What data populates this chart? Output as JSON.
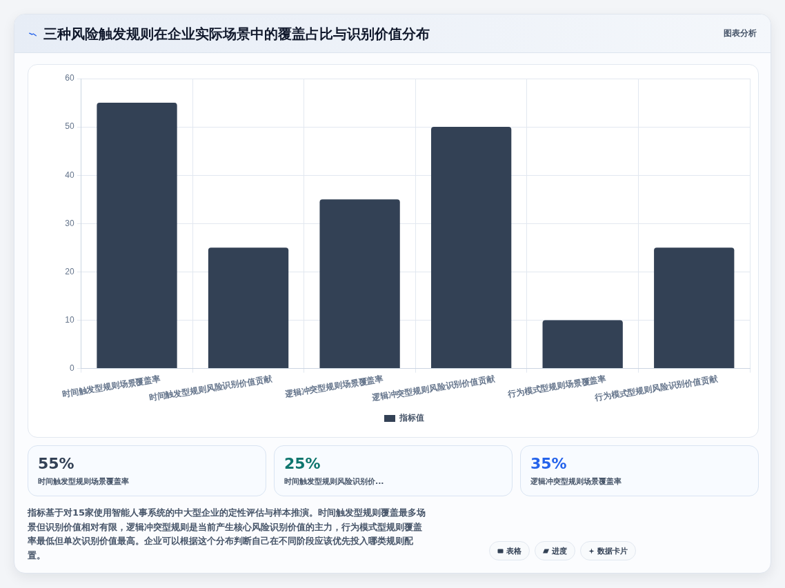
{
  "chart_data": [
    {
      "type": "bar",
      "title": "三种风险触发规则在企业实际场景中的覆盖占比与识别价值分布",
      "categories": [
        "时间触发型规则场景覆盖率",
        "时间触发型规则风险识别价值贡献",
        "逻辑冲突型规则场景覆盖率",
        "逻辑冲突型规则风险识别价值贡献",
        "行为模式型规则场景覆盖率",
        "行为模式型规则风险识别价值贡献"
      ],
      "series": [
        {
          "name": "指标值",
          "color": "#334155",
          "values": [
            55,
            25,
            35,
            50,
            10,
            25
          ]
        }
      ],
      "ylim": [
        0,
        60
      ],
      "yticks": [
        0,
        10,
        20,
        30,
        40,
        50,
        60
      ],
      "grid": true,
      "legend": "bottom",
      "annotations": [
        "图表分析",
        "指标基于对15家使用智能人事系统的中大型企业的定性评估与样本推演。时间触发型规则覆盖最多场景但识别价值相对有限，逻辑冲突型规则是当前产生核心风险识别价值的主力，行为模式型规则覆盖率最低但单次识别价值最高。企业可以根据这个分布判断自己在不同阶段应该优先投入哪类规则配置。",
        "表格",
        "进度",
        "数据卡片"
      ]
    },
    {
      "type": "other",
      "categories": [
        "时间触发型规则场景覆盖率",
        "时间触发型规则风险识别价...",
        "逻辑冲突型规则场景覆盖率"
      ],
      "value_labels": [
        "55%",
        "25%",
        "35%"
      ],
      "colors": [
        "#334155",
        "#0f766e",
        "#2563eb"
      ]
    }
  ]
}
